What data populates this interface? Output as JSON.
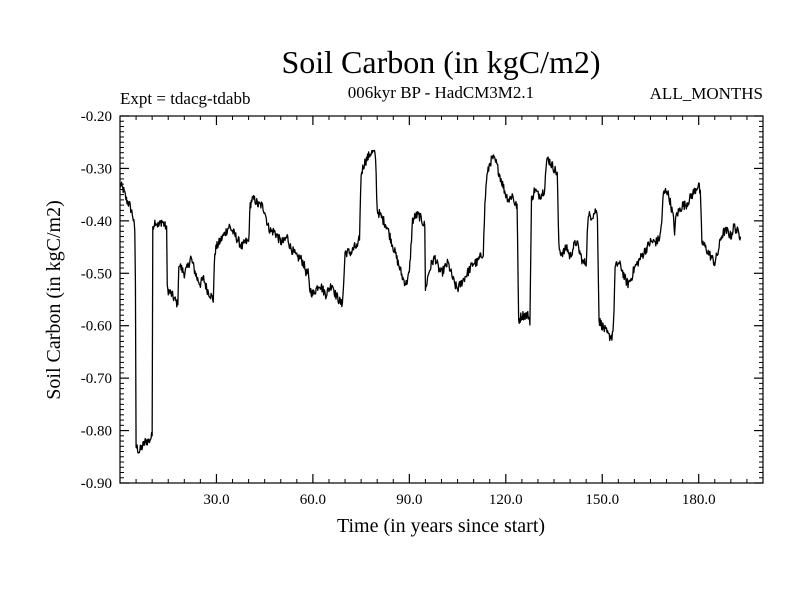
{
  "chart_data": {
    "type": "line",
    "title": "Soil Carbon (in kgC/m2)",
    "subtitle": "006kyr BP - HadCM3M2.1",
    "left_label": "Expt = tdacg-tdabb",
    "right_label": "ALL_MONTHS",
    "xlabel": "Time (in years since start)",
    "ylabel": "Soil Carbon (in kgC/m2)",
    "xlim": [
      0,
      200
    ],
    "ylim": [
      -0.9,
      -0.2
    ],
    "x_ticks": [
      30,
      60,
      90,
      120,
      150,
      180
    ],
    "x_tick_labels": [
      "30.0",
      "60.0",
      "90.0",
      "120.0",
      "150.0",
      "180.0"
    ],
    "y_ticks": [
      -0.2,
      -0.3,
      -0.4,
      -0.5,
      -0.6,
      -0.7,
      -0.8,
      -0.9
    ],
    "y_tick_labels": [
      "-0.20",
      "-0.30",
      "-0.40",
      "-0.50",
      "-0.60",
      "-0.70",
      "-0.80",
      "-0.90"
    ],
    "grid": false,
    "series": [
      {
        "name": "Soil Carbon",
        "color": "#000000",
        "points": [
          [
            0,
            -0.33
          ],
          [
            1,
            -0.34
          ],
          [
            2,
            -0.36
          ],
          [
            3,
            -0.37
          ],
          [
            4,
            -0.39
          ],
          [
            4.6,
            -0.42
          ],
          [
            4.8,
            -0.52
          ],
          [
            5,
            -0.83
          ],
          [
            6,
            -0.84
          ],
          [
            7,
            -0.83
          ],
          [
            8,
            -0.82
          ],
          [
            9,
            -0.82
          ],
          [
            10,
            -0.81
          ],
          [
            10.2,
            -0.41
          ],
          [
            11,
            -0.4
          ],
          [
            12,
            -0.41
          ],
          [
            13,
            -0.4
          ],
          [
            14,
            -0.41
          ],
          [
            14.5,
            -0.41
          ],
          [
            14.7,
            -0.53
          ],
          [
            16,
            -0.54
          ],
          [
            17,
            -0.55
          ],
          [
            18,
            -0.56
          ],
          [
            18.3,
            -0.48
          ],
          [
            19,
            -0.49
          ],
          [
            20,
            -0.5
          ],
          [
            21,
            -0.49
          ],
          [
            22,
            -0.47
          ],
          [
            23,
            -0.49
          ],
          [
            24,
            -0.51
          ],
          [
            25,
            -0.52
          ],
          [
            26,
            -0.51
          ],
          [
            27,
            -0.53
          ],
          [
            28,
            -0.54
          ],
          [
            29,
            -0.55
          ],
          [
            29.5,
            -0.46
          ],
          [
            30,
            -0.45
          ],
          [
            31,
            -0.44
          ],
          [
            32,
            -0.43
          ],
          [
            33,
            -0.42
          ],
          [
            34,
            -0.41
          ],
          [
            35,
            -0.42
          ],
          [
            36,
            -0.43
          ],
          [
            37,
            -0.44
          ],
          [
            38,
            -0.45
          ],
          [
            39,
            -0.44
          ],
          [
            40,
            -0.44
          ],
          [
            40.5,
            -0.37
          ],
          [
            41,
            -0.36
          ],
          [
            42,
            -0.36
          ],
          [
            43,
            -0.37
          ],
          [
            44,
            -0.37
          ],
          [
            45,
            -0.38
          ],
          [
            46,
            -0.41
          ],
          [
            47,
            -0.42
          ],
          [
            48,
            -0.42
          ],
          [
            49,
            -0.43
          ],
          [
            50,
            -0.44
          ],
          [
            51,
            -0.44
          ],
          [
            52,
            -0.43
          ],
          [
            53,
            -0.45
          ],
          [
            54,
            -0.46
          ],
          [
            55,
            -0.47
          ],
          [
            56,
            -0.47
          ],
          [
            57,
            -0.48
          ],
          [
            58,
            -0.5
          ],
          [
            58.5,
            -0.5
          ],
          [
            59,
            -0.53
          ],
          [
            60,
            -0.54
          ],
          [
            61,
            -0.53
          ],
          [
            62,
            -0.52
          ],
          [
            63,
            -0.53
          ],
          [
            64,
            -0.54
          ],
          [
            65,
            -0.53
          ],
          [
            66,
            -0.52
          ],
          [
            67,
            -0.54
          ],
          [
            68,
            -0.55
          ],
          [
            69,
            -0.56
          ],
          [
            69.5,
            -0.53
          ],
          [
            70,
            -0.46
          ],
          [
            71,
            -0.46
          ],
          [
            72,
            -0.46
          ],
          [
            73,
            -0.45
          ],
          [
            74,
            -0.45
          ],
          [
            74.5,
            -0.43
          ],
          [
            75,
            -0.31
          ],
          [
            76,
            -0.29
          ],
          [
            77,
            -0.28
          ],
          [
            78,
            -0.27
          ],
          [
            79,
            -0.27
          ],
          [
            79.5,
            -0.28
          ],
          [
            80,
            -0.38
          ],
          [
            81,
            -0.39
          ],
          [
            82,
            -0.4
          ],
          [
            83,
            -0.41
          ],
          [
            84,
            -0.43
          ],
          [
            85,
            -0.45
          ],
          [
            86,
            -0.47
          ],
          [
            87,
            -0.49
          ],
          [
            88,
            -0.51
          ],
          [
            89,
            -0.52
          ],
          [
            90,
            -0.5
          ],
          [
            90.5,
            -0.45
          ],
          [
            91,
            -0.4
          ],
          [
            92,
            -0.39
          ],
          [
            93,
            -0.39
          ],
          [
            94,
            -0.4
          ],
          [
            94.8,
            -0.41
          ],
          [
            95,
            -0.53
          ],
          [
            96,
            -0.5
          ],
          [
            97,
            -0.48
          ],
          [
            98,
            -0.47
          ],
          [
            99,
            -0.49
          ],
          [
            100,
            -0.5
          ],
          [
            101,
            -0.49
          ],
          [
            102,
            -0.48
          ],
          [
            103,
            -0.5
          ],
          [
            104,
            -0.52
          ],
          [
            105,
            -0.53
          ],
          [
            106,
            -0.52
          ],
          [
            107,
            -0.51
          ],
          [
            108,
            -0.5
          ],
          [
            109,
            -0.49
          ],
          [
            110,
            -0.48
          ],
          [
            111,
            -0.48
          ],
          [
            112,
            -0.47
          ],
          [
            113,
            -0.46
          ],
          [
            113.5,
            -0.37
          ],
          [
            114,
            -0.32
          ],
          [
            115,
            -0.29
          ],
          [
            116,
            -0.28
          ],
          [
            117,
            -0.29
          ],
          [
            118,
            -0.31
          ],
          [
            119,
            -0.33
          ],
          [
            120,
            -0.35
          ],
          [
            121,
            -0.36
          ],
          [
            122,
            -0.35
          ],
          [
            123,
            -0.37
          ],
          [
            123.5,
            -0.37
          ],
          [
            124,
            -0.59
          ],
          [
            125,
            -0.58
          ],
          [
            126,
            -0.58
          ],
          [
            127,
            -0.58
          ],
          [
            127.5,
            -0.59
          ],
          [
            128,
            -0.36
          ],
          [
            129,
            -0.34
          ],
          [
            130,
            -0.35
          ],
          [
            131,
            -0.35
          ],
          [
            132,
            -0.34
          ],
          [
            132.5,
            -0.3
          ],
          [
            133,
            -0.28
          ],
          [
            134,
            -0.29
          ],
          [
            135,
            -0.3
          ],
          [
            136,
            -0.31
          ],
          [
            136.5,
            -0.45
          ],
          [
            137,
            -0.46
          ],
          [
            138,
            -0.46
          ],
          [
            139,
            -0.45
          ],
          [
            140,
            -0.47
          ],
          [
            141,
            -0.45
          ],
          [
            142,
            -0.44
          ],
          [
            143,
            -0.46
          ],
          [
            144,
            -0.48
          ],
          [
            145,
            -0.48
          ],
          [
            145.5,
            -0.4
          ],
          [
            146,
            -0.39
          ],
          [
            147,
            -0.39
          ],
          [
            148,
            -0.38
          ],
          [
            148.5,
            -0.39
          ],
          [
            149,
            -0.59
          ],
          [
            150,
            -0.6
          ],
          [
            151,
            -0.61
          ],
          [
            152,
            -0.62
          ],
          [
            153,
            -0.62
          ],
          [
            153.5,
            -0.6
          ],
          [
            154,
            -0.49
          ],
          [
            155,
            -0.48
          ],
          [
            156,
            -0.49
          ],
          [
            157,
            -0.51
          ],
          [
            158,
            -0.52
          ],
          [
            159,
            -0.51
          ],
          [
            160,
            -0.49
          ],
          [
            161,
            -0.48
          ],
          [
            162,
            -0.47
          ],
          [
            163,
            -0.46
          ],
          [
            164,
            -0.45
          ],
          [
            165,
            -0.44
          ],
          [
            166,
            -0.44
          ],
          [
            167,
            -0.44
          ],
          [
            168,
            -0.43
          ],
          [
            168.5,
            -0.4
          ],
          [
            169,
            -0.35
          ],
          [
            170,
            -0.34
          ],
          [
            171,
            -0.36
          ],
          [
            172,
            -0.39
          ],
          [
            172.5,
            -0.42
          ],
          [
            173,
            -0.39
          ],
          [
            174,
            -0.38
          ],
          [
            175,
            -0.37
          ],
          [
            176,
            -0.37
          ],
          [
            177,
            -0.36
          ],
          [
            178,
            -0.35
          ],
          [
            179,
            -0.34
          ],
          [
            180,
            -0.33
          ],
          [
            180.5,
            -0.35
          ],
          [
            181,
            -0.44
          ],
          [
            182,
            -0.45
          ],
          [
            183,
            -0.46
          ],
          [
            184,
            -0.47
          ],
          [
            185,
            -0.48
          ],
          [
            186,
            -0.46
          ],
          [
            187,
            -0.43
          ],
          [
            188,
            -0.42
          ],
          [
            189,
            -0.42
          ],
          [
            190,
            -0.43
          ],
          [
            191,
            -0.41
          ],
          [
            192,
            -0.42
          ],
          [
            193,
            -0.43
          ]
        ]
      }
    ]
  }
}
